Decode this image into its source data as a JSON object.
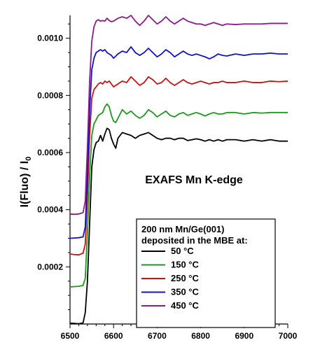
{
  "chart_data": {
    "type": "line",
    "title": "",
    "ylabel": "I(Fluo) / I",
    "ylabel_sub": "0",
    "xlabel": "",
    "xlim": [
      6500,
      7000
    ],
    "ylim": [
      0.0,
      0.00108
    ],
    "x_ticks": [
      "6500",
      "6600",
      "6700",
      "6800",
      "6900",
      "7000"
    ],
    "y_ticks": [
      "0.0002",
      "0.0004",
      "0.0006",
      "0.0008",
      "0.0010"
    ],
    "annotation": "EXAFS Mn K-edge",
    "legend": {
      "title_line1": "200 nm Mn/Ge(001)",
      "title_line2": "deposited in the MBE at:",
      "placement": "bottom-right"
    },
    "series": [
      {
        "name": "50 °C",
        "color": "#000000",
        "points": [
          [
            6500,
            3e-06
          ],
          [
            6510,
            2e-06
          ],
          [
            6520,
            1e-06
          ],
          [
            6530,
            4e-06
          ],
          [
            6535,
            4e-05
          ],
          [
            6540,
            0.00015
          ],
          [
            6545,
            0.00035
          ],
          [
            6550,
            0.00055
          ],
          [
            6555,
            0.00061
          ],
          [
            6560,
            0.000635
          ],
          [
            6565,
            0.00064
          ],
          [
            6570,
            0.00066
          ],
          [
            6575,
            0.00064
          ],
          [
            6580,
            0.000665
          ],
          [
            6585,
            0.000685
          ],
          [
            6590,
            0.00068
          ],
          [
            6595,
            0.00065
          ],
          [
            6600,
            0.00063
          ],
          [
            6605,
            0.000615
          ],
          [
            6610,
            0.00065
          ],
          [
            6615,
            0.00066
          ],
          [
            6620,
            0.00067
          ],
          [
            6630,
            0.000665
          ],
          [
            6640,
            0.00066
          ],
          [
            6650,
            0.00065
          ],
          [
            6660,
            0.00066
          ],
          [
            6670,
            0.000665
          ],
          [
            6680,
            0.00067
          ],
          [
            6690,
            0.00066
          ],
          [
            6700,
            0.00065
          ],
          [
            6710,
            0.000645
          ],
          [
            6720,
            0.00065
          ],
          [
            6730,
            0.00065
          ],
          [
            6740,
            0.000645
          ],
          [
            6750,
            0.00065
          ],
          [
            6760,
            0.00065
          ],
          [
            6770,
            0.000642
          ],
          [
            6780,
            0.000645
          ],
          [
            6790,
            0.000648
          ],
          [
            6800,
            0.000645
          ],
          [
            6810,
            0.00064
          ],
          [
            6820,
            0.000645
          ],
          [
            6830,
            0.00064
          ],
          [
            6840,
            0.000645
          ],
          [
            6850,
            0.00064
          ],
          [
            6860,
            0.000645
          ],
          [
            6870,
            0.000645
          ],
          [
            6880,
            0.000645
          ],
          [
            6900,
            0.00064
          ],
          [
            6920,
            0.000645
          ],
          [
            6940,
            0.00064
          ],
          [
            6960,
            0.000645
          ],
          [
            6980,
            0.00064
          ],
          [
            7000,
            0.00064
          ]
        ]
      },
      {
        "name": "150 °C",
        "color": "#1a9a1a",
        "points": [
          [
            6500,
            0.00013
          ],
          [
            6510,
            0.000131
          ],
          [
            6520,
            0.000132
          ],
          [
            6530,
            0.000135
          ],
          [
            6535,
            0.00016
          ],
          [
            6540,
            0.00032
          ],
          [
            6545,
            0.00052
          ],
          [
            6550,
            0.00066
          ],
          [
            6555,
            0.0007
          ],
          [
            6560,
            0.000715
          ],
          [
            6565,
            0.00073
          ],
          [
            6570,
            0.000735
          ],
          [
            6575,
            0.00074
          ],
          [
            6580,
            0.00076
          ],
          [
            6585,
            0.00077
          ],
          [
            6590,
            0.00076
          ],
          [
            6595,
            0.00073
          ],
          [
            6600,
            0.00071
          ],
          [
            6605,
            0.000705
          ],
          [
            6610,
            0.00072
          ],
          [
            6615,
            0.000735
          ],
          [
            6620,
            0.00075
          ],
          [
            6630,
            0.000735
          ],
          [
            6640,
            0.000745
          ],
          [
            6650,
            0.00073
          ],
          [
            6660,
            0.00072
          ],
          [
            6670,
            0.00073
          ],
          [
            6680,
            0.00075
          ],
          [
            6690,
            0.00074
          ],
          [
            6700,
            0.000725
          ],
          [
            6710,
            0.000735
          ],
          [
            6720,
            0.000745
          ],
          [
            6730,
            0.00073
          ],
          [
            6740,
            0.000725
          ],
          [
            6750,
            0.000735
          ],
          [
            6760,
            0.00074
          ],
          [
            6770,
            0.00073
          ],
          [
            6780,
            0.000735
          ],
          [
            6790,
            0.00074
          ],
          [
            6800,
            0.000735
          ],
          [
            6810,
            0.000728
          ],
          [
            6820,
            0.000735
          ],
          [
            6830,
            0.00074
          ],
          [
            6840,
            0.000735
          ],
          [
            6850,
            0.000735
          ],
          [
            6860,
            0.00074
          ],
          [
            6880,
            0.00074
          ],
          [
            6900,
            0.000735
          ],
          [
            6920,
            0.00074
          ],
          [
            6940,
            0.000738
          ],
          [
            6960,
            0.00074
          ],
          [
            6980,
            0.00074
          ],
          [
            7000,
            0.00074
          ]
        ]
      },
      {
        "name": "250 °C",
        "color": "#cc1111",
        "points": [
          [
            6500,
            0.000245
          ],
          [
            6510,
            0.000243
          ],
          [
            6520,
            0.000242
          ],
          [
            6530,
            0.000248
          ],
          [
            6535,
            0.00028
          ],
          [
            6540,
            0.00045
          ],
          [
            6545,
            0.00066
          ],
          [
            6550,
            0.00079
          ],
          [
            6555,
            0.00082
          ],
          [
            6560,
            0.00083
          ],
          [
            6565,
            0.00084
          ],
          [
            6570,
            0.000845
          ],
          [
            6575,
            0.00084
          ],
          [
            6580,
            0.00085
          ],
          [
            6585,
            0.000845
          ],
          [
            6590,
            0.00085
          ],
          [
            6595,
            0.00084
          ],
          [
            6600,
            0.00083
          ],
          [
            6610,
            0.00084
          ],
          [
            6620,
            0.00085
          ],
          [
            6630,
            0.000845
          ],
          [
            6640,
            0.000865
          ],
          [
            6650,
            0.00085
          ],
          [
            6660,
            0.000835
          ],
          [
            6670,
            0.000845
          ],
          [
            6680,
            0.000865
          ],
          [
            6690,
            0.000855
          ],
          [
            6700,
            0.00084
          ],
          [
            6710,
            0.000845
          ],
          [
            6720,
            0.00086
          ],
          [
            6730,
            0.000845
          ],
          [
            6740,
            0.000835
          ],
          [
            6750,
            0.000845
          ],
          [
            6760,
            0.000855
          ],
          [
            6770,
            0.000845
          ],
          [
            6780,
            0.00084
          ],
          [
            6790,
            0.000845
          ],
          [
            6800,
            0.00085
          ],
          [
            6810,
            0.000845
          ],
          [
            6820,
            0.00084
          ],
          [
            6830,
            0.000845
          ],
          [
            6840,
            0.000845
          ],
          [
            6850,
            0.00085
          ],
          [
            6860,
            0.000845
          ],
          [
            6880,
            0.000845
          ],
          [
            6900,
            0.00085
          ],
          [
            6920,
            0.000845
          ],
          [
            6940,
            0.000845
          ],
          [
            6960,
            0.00085
          ],
          [
            6980,
            0.000848
          ],
          [
            7000,
            0.00085
          ]
        ]
      },
      {
        "name": "350 °C",
        "color": "#1111cc",
        "points": [
          [
            6500,
            0.0003
          ],
          [
            6510,
            0.000301
          ],
          [
            6520,
            0.000302
          ],
          [
            6530,
            0.000305
          ],
          [
            6535,
            0.00034
          ],
          [
            6540,
            0.00052
          ],
          [
            6545,
            0.00075
          ],
          [
            6550,
            0.00089
          ],
          [
            6555,
            0.00093
          ],
          [
            6560,
            0.00095
          ],
          [
            6565,
            0.000955
          ],
          [
            6570,
            0.00096
          ],
          [
            6575,
            0.000955
          ],
          [
            6580,
            0.00096
          ],
          [
            6585,
            0.00095
          ],
          [
            6590,
            0.000945
          ],
          [
            6595,
            0.00094
          ],
          [
            6600,
            0.00093
          ],
          [
            6610,
            0.000945
          ],
          [
            6620,
            0.000955
          ],
          [
            6630,
            0.00095
          ],
          [
            6640,
            0.00097
          ],
          [
            6650,
            0.00095
          ],
          [
            6660,
            0.00094
          ],
          [
            6670,
            0.00095
          ],
          [
            6680,
            0.000965
          ],
          [
            6690,
            0.00095
          ],
          [
            6700,
            0.000935
          ],
          [
            6710,
            0.000945
          ],
          [
            6720,
            0.00096
          ],
          [
            6730,
            0.00095
          ],
          [
            6740,
            0.000935
          ],
          [
            6750,
            0.000945
          ],
          [
            6760,
            0.000955
          ],
          [
            6770,
            0.000945
          ],
          [
            6780,
            0.00094
          ],
          [
            6790,
            0.000945
          ],
          [
            6800,
            0.00094
          ],
          [
            6810,
            0.000935
          ],
          [
            6820,
            0.000928
          ],
          [
            6830,
            0.000935
          ],
          [
            6840,
            0.000945
          ],
          [
            6850,
            0.00094
          ],
          [
            6860,
            0.000938
          ],
          [
            6880,
            0.000945
          ],
          [
            6900,
            0.00094
          ],
          [
            6920,
            0.000945
          ],
          [
            6940,
            0.000945
          ],
          [
            6960,
            0.000948
          ],
          [
            6980,
            0.000945
          ],
          [
            7000,
            0.000945
          ]
        ]
      },
      {
        "name": "450 °C",
        "color": "#8b1a8b",
        "points": [
          [
            6500,
            0.000385
          ],
          [
            6510,
            0.000384
          ],
          [
            6520,
            0.000385
          ],
          [
            6530,
            0.00039
          ],
          [
            6535,
            0.00043
          ],
          [
            6540,
            0.00062
          ],
          [
            6545,
            0.00085
          ],
          [
            6550,
            0.00099
          ],
          [
            6555,
            0.00104
          ],
          [
            6560,
            0.00106
          ],
          [
            6565,
            0.001065
          ],
          [
            6570,
            0.00106
          ],
          [
            6575,
            0.001062
          ],
          [
            6580,
            0.00106
          ],
          [
            6585,
            0.00107
          ],
          [
            6590,
            0.001062
          ],
          [
            6595,
            0.001058
          ],
          [
            6600,
            0.00106
          ],
          [
            6610,
            0.00107
          ],
          [
            6620,
            0.001075
          ],
          [
            6630,
            0.00107
          ],
          [
            6640,
            0.00108
          ],
          [
            6650,
            0.00106
          ],
          [
            6660,
            0.001045
          ],
          [
            6670,
            0.00106
          ],
          [
            6680,
            0.00108
          ],
          [
            6690,
            0.001065
          ],
          [
            6700,
            0.00105
          ],
          [
            6710,
            0.00106
          ],
          [
            6720,
            0.001075
          ],
          [
            6730,
            0.00106
          ],
          [
            6740,
            0.00105
          ],
          [
            6750,
            0.00106
          ],
          [
            6760,
            0.00107
          ],
          [
            6770,
            0.00106
          ],
          [
            6780,
            0.001055
          ],
          [
            6790,
            0.00105
          ],
          [
            6800,
            0.00105
          ],
          [
            6810,
            0.001045
          ],
          [
            6820,
            0.00105
          ],
          [
            6830,
            0.001055
          ],
          [
            6840,
            0.00105
          ],
          [
            6850,
            0.001045
          ],
          [
            6860,
            0.00105
          ],
          [
            6880,
            0.001048
          ],
          [
            6900,
            0.00105
          ],
          [
            6920,
            0.00105
          ],
          [
            6940,
            0.00105
          ],
          [
            6960,
            0.001052
          ],
          [
            6980,
            0.001052
          ],
          [
            7000,
            0.001052
          ]
        ]
      }
    ]
  }
}
